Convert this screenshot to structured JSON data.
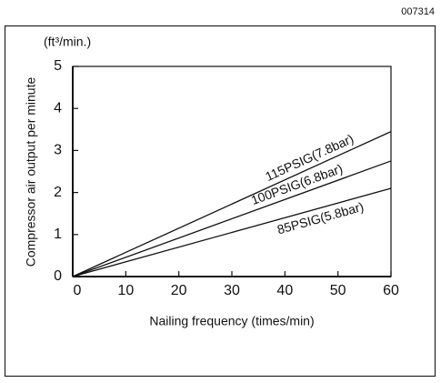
{
  "chart_data": {
    "type": "line",
    "figure_id": "007314",
    "y_unit": "(ft³/min.)",
    "y_label": "Compressor air output per minute",
    "x_label": "Nailing frequency (times/min)",
    "x": [
      0,
      60
    ],
    "series": [
      {
        "name": "115PSIG(7.8bar)",
        "color": "#111111",
        "values": [
          0,
          3.45
        ]
      },
      {
        "name": "100PSIG(6.8bar)",
        "color": "#111111",
        "values": [
          0,
          2.75
        ]
      },
      {
        "name": "85PSIG(5.8bar)",
        "color": "#111111",
        "values": [
          0,
          2.1
        ]
      }
    ],
    "xlim": [
      0,
      60
    ],
    "xticks": [
      0,
      10,
      20,
      30,
      40,
      50,
      60
    ],
    "ylim": [
      0,
      5
    ],
    "yticks": [
      0,
      1,
      2,
      3,
      4,
      5
    ],
    "grid": false
  }
}
